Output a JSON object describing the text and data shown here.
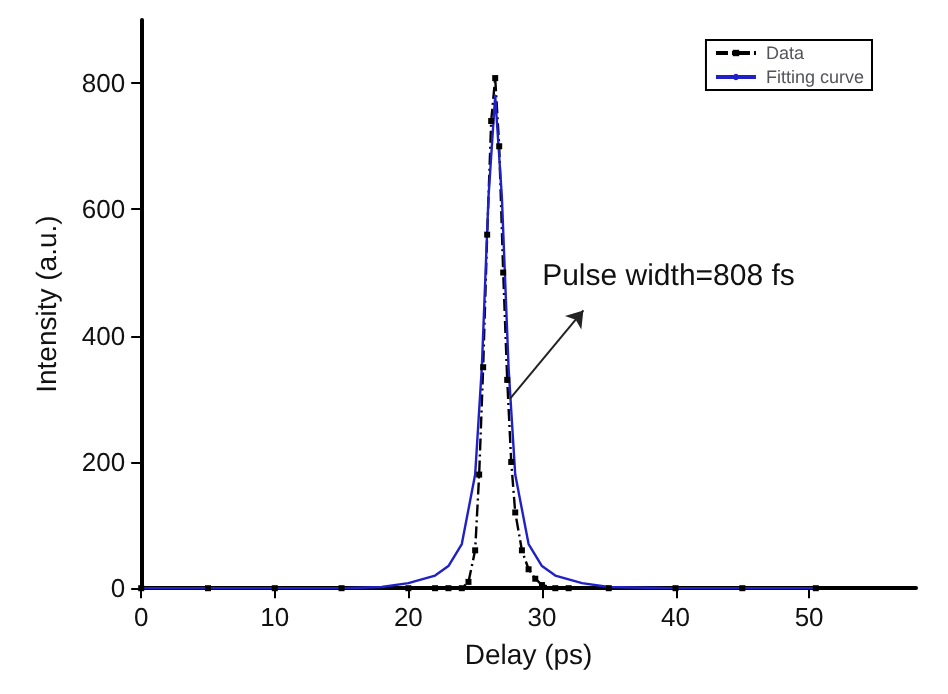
{
  "chart_data": {
    "type": "line",
    "xlabel": "Delay (ps)",
    "ylabel": "Intensity (a.u.)",
    "xlim": [
      0,
      58
    ],
    "xticks": [
      0,
      10,
      20,
      30,
      40,
      50
    ],
    "ylim": [
      0,
      900
    ],
    "yticks": [
      0,
      200,
      400,
      600,
      800
    ],
    "grid": false,
    "legend": "top right",
    "annotations": [
      {
        "text": "Pulse width=808 fs",
        "x": 27.6,
        "y": 300
      }
    ],
    "series": [
      {
        "name": "Data",
        "color": "#000000",
        "marker": "square",
        "line_style": "dashed",
        "x": [
          0,
          5,
          10,
          15,
          20,
          22,
          23,
          24,
          24.5,
          25,
          25.3,
          25.6,
          25.9,
          26.2,
          26.5,
          26.8,
          27.1,
          27.4,
          27.7,
          28,
          28.5,
          29,
          29.5,
          30,
          31,
          32,
          35,
          40,
          45,
          50.5
        ],
        "values": [
          0,
          0,
          0,
          0,
          0,
          0,
          0,
          0,
          10,
          60,
          180,
          350,
          560,
          740,
          808,
          700,
          500,
          330,
          200,
          120,
          60,
          30,
          15,
          5,
          0,
          0,
          0,
          0,
          0,
          0
        ]
      },
      {
        "name": "Fitting curve",
        "color": "#2020c8",
        "marker": "none",
        "line_style": "solid",
        "x": [
          0,
          10,
          15,
          18,
          20,
          22,
          23,
          24,
          25,
          25.5,
          26,
          26.5,
          27,
          27.5,
          28,
          29,
          30,
          31,
          33,
          35,
          40,
          50.5
        ],
        "values": [
          0,
          0,
          0,
          2,
          8,
          20,
          35,
          70,
          180,
          350,
          620,
          780,
          620,
          350,
          180,
          70,
          35,
          20,
          8,
          2,
          0,
          0
        ]
      }
    ]
  }
}
